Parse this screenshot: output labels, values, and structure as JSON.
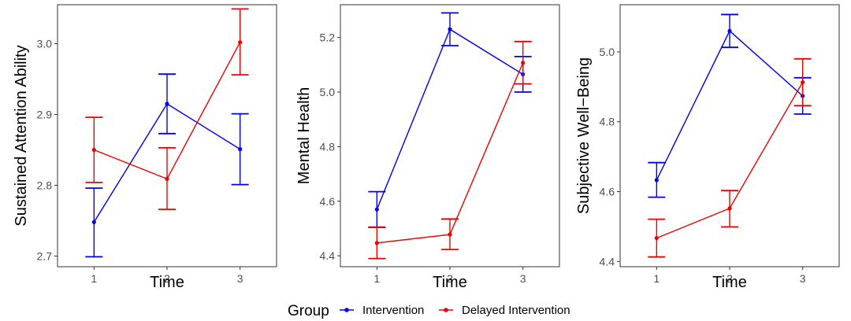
{
  "chart_data": [
    {
      "type": "line",
      "xlabel": "Time",
      "ylabel": "Sustained Attention Ability",
      "x": [
        1,
        2,
        3
      ],
      "xlim": [
        0.5,
        3.5
      ],
      "ylim": [
        2.685,
        3.055
      ],
      "yticks": [
        2.7,
        2.8,
        2.9,
        3.0
      ],
      "yticklabels": [
        "2.7",
        "2.8",
        "2.9",
        "3.0"
      ],
      "series": [
        {
          "name": "Intervention",
          "color": "#0000ee",
          "values": [
            2.748,
            2.915,
            2.851
          ],
          "lower": [
            2.699,
            2.873,
            2.801
          ],
          "upper": [
            2.796,
            2.957,
            2.901
          ]
        },
        {
          "name": "Delayed Intervention",
          "color": "#ee0000",
          "values": [
            2.85,
            2.809,
            3.002
          ],
          "lower": [
            2.804,
            2.766,
            2.956
          ],
          "upper": [
            2.896,
            2.853,
            3.049
          ]
        }
      ]
    },
    {
      "type": "line",
      "xlabel": "Time",
      "ylabel": "Mental Health",
      "x": [
        1,
        2,
        3
      ],
      "xlim": [
        0.5,
        3.5
      ],
      "ylim": [
        4.36,
        5.32
      ],
      "yticks": [
        4.4,
        4.6,
        4.8,
        5.0,
        5.2
      ],
      "yticklabels": [
        "4.4",
        "4.6",
        "4.8",
        "5.0",
        "5.2"
      ],
      "series": [
        {
          "name": "Intervention",
          "color": "#0000ee",
          "values": [
            4.57,
            5.23,
            5.065
          ],
          "lower": [
            4.505,
            5.17,
            5.0
          ],
          "upper": [
            4.635,
            5.29,
            5.13
          ]
        },
        {
          "name": "Delayed Intervention",
          "color": "#ee0000",
          "values": [
            4.447,
            4.478,
            5.107
          ],
          "lower": [
            4.39,
            4.423,
            5.03
          ],
          "upper": [
            4.504,
            4.535,
            5.185
          ]
        }
      ]
    },
    {
      "type": "line",
      "xlabel": "Time",
      "ylabel": "Subjective Well−Being",
      "x": [
        1,
        2,
        3
      ],
      "xlim": [
        0.5,
        3.5
      ],
      "ylim": [
        4.385,
        5.135
      ],
      "yticks": [
        4.4,
        4.6,
        4.8,
        5.0
      ],
      "yticklabels": [
        "4.4",
        "4.6",
        "4.8",
        "5.0"
      ],
      "series": [
        {
          "name": "Intervention",
          "color": "#0000ee",
          "values": [
            4.633,
            5.06,
            4.874
          ],
          "lower": [
            4.584,
            5.013,
            4.822
          ],
          "upper": [
            4.683,
            5.107,
            4.926
          ]
        },
        {
          "name": "Delayed Intervention",
          "color": "#ee0000",
          "values": [
            4.467,
            4.552,
            4.913
          ],
          "lower": [
            4.413,
            4.499,
            4.846
          ],
          "upper": [
            4.521,
            4.603,
            4.98
          ]
        }
      ]
    }
  ],
  "legend": {
    "title": "Group",
    "position": "bottom",
    "entries": [
      {
        "label": "Intervention",
        "color": "#0000ee"
      },
      {
        "label": "Delayed Intervention",
        "color": "#ee0000"
      }
    ]
  },
  "grid": false
}
